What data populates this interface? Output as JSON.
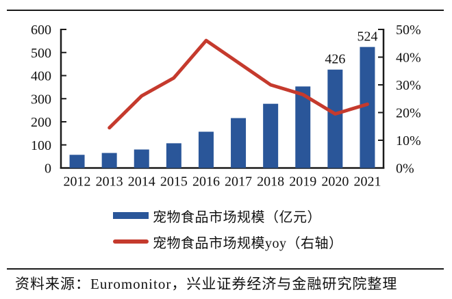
{
  "chart_data": {
    "type": "bar+line",
    "title": "",
    "categories": [
      "2012",
      "2013",
      "2014",
      "2015",
      "2016",
      "2017",
      "2018",
      "2019",
      "2020",
      "2021"
    ],
    "series": [
      {
        "name": "宠物食品市场规模（亿元）",
        "type": "bar",
        "axis": "left",
        "color": "#2A5699",
        "values": [
          57,
          65,
          80,
          107,
          157,
          216,
          278,
          353,
          426,
          524
        ]
      },
      {
        "name": "宠物食品市场规模yoy（右轴）",
        "type": "line",
        "axis": "right",
        "color": "#C53A2D",
        "values": [
          null,
          14.5,
          26,
          32.5,
          46,
          38,
          30,
          26.5,
          19.5,
          23
        ]
      }
    ],
    "bar_value_labels": {
      "2020": "426",
      "2021": "524"
    },
    "left_axis": {
      "min": 0,
      "max": 600,
      "step": 100,
      "tick_labels": [
        "600",
        "500",
        "400",
        "300",
        "200",
        "100",
        "0"
      ]
    },
    "right_axis": {
      "min": 0,
      "max": 50,
      "step": 10,
      "tick_labels": [
        "50%",
        "40%",
        "30%",
        "20%",
        "10%",
        "0%"
      ]
    },
    "grid": false,
    "legend_position": "below"
  },
  "legend": {
    "items": [
      {
        "label": "宠物食品市场规模（亿元）",
        "marker": "bar",
        "color": "#2A5699"
      },
      {
        "label": "宠物食品市场规模yoy（右轴）",
        "marker": "line",
        "color": "#C53A2D"
      }
    ]
  },
  "source_note": "资料来源：Euromonitor，兴业证券经济与金融研究院整理",
  "colors": {
    "bar": "#2A5699",
    "line": "#C53A2D",
    "axis": "#1a1a1a",
    "text": "#111111"
  }
}
